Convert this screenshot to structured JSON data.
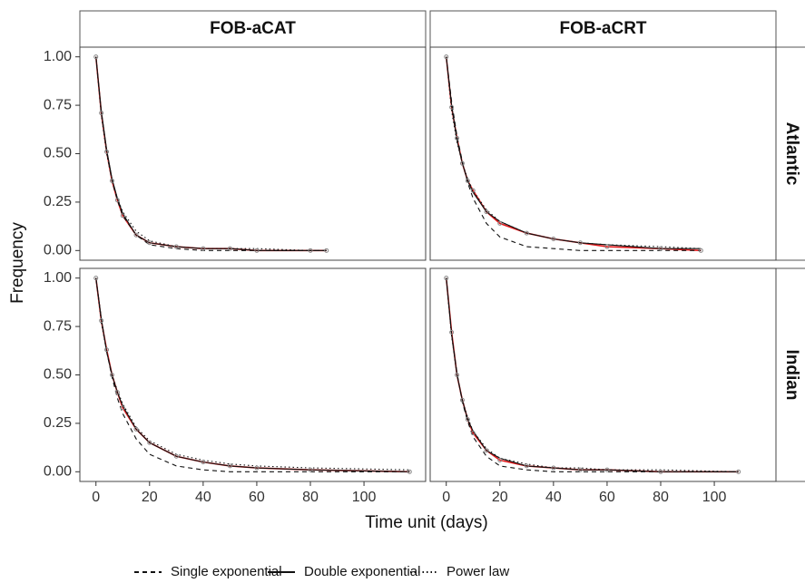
{
  "chart_data": {
    "type": "line",
    "xlabel": "Time unit (days)",
    "ylabel": "Frequency",
    "xlim": [
      -6,
      123
    ],
    "xticks": [
      0,
      20,
      40,
      60,
      80,
      100
    ],
    "ylim": [
      -0.05,
      1.05
    ],
    "yticks": [
      {
        "value": 0,
        "label": "0.00"
      },
      0.25,
      {
        "value": 0.5,
        "label": "0.50"
      },
      0.75,
      {
        "value": 1,
        "label": "1.00"
      }
    ],
    "columns": [
      "FOB-aCAT",
      "FOB-aCRT"
    ],
    "rows": [
      "Atlantic",
      "Indian"
    ],
    "observed_color": "#e31a1c",
    "point_color": "#888888",
    "legend": [
      {
        "name": "Single exponential",
        "style": "dashed"
      },
      {
        "name": "Double exponential",
        "style": "solid"
      },
      {
        "name": "Power law",
        "style": "dotted"
      }
    ],
    "panels": [
      {
        "x": [
          0,
          2,
          4,
          6,
          8,
          10,
          15,
          20,
          30,
          40,
          50,
          60,
          80,
          86
        ],
        "observed": [
          1.0,
          0.71,
          0.51,
          0.36,
          0.26,
          0.18,
          0.08,
          0.04,
          0.02,
          0.01,
          0.01,
          0.0,
          0.0,
          0.0
        ],
        "series": [
          {
            "style": "dashed",
            "values": [
              1.0,
              0.71,
              0.51,
              0.36,
              0.26,
              0.18,
              0.08,
              0.03,
              0.01,
              0.0,
              0.0,
              0.0,
              0.0,
              0.0
            ]
          },
          {
            "style": "solid",
            "values": [
              1.0,
              0.72,
              0.52,
              0.37,
              0.27,
              0.19,
              0.08,
              0.04,
              0.02,
              0.01,
              0.01,
              0.0,
              0.0,
              0.0
            ]
          },
          {
            "style": "dotted",
            "values": [
              1.0,
              0.7,
              0.5,
              0.36,
              0.27,
              0.2,
              0.1,
              0.05,
              0.02,
              0.01,
              0.01,
              0.01,
              0.0,
              0.0
            ]
          }
        ]
      },
      {
        "x": [
          0,
          2,
          4,
          6,
          8,
          10,
          15,
          20,
          30,
          40,
          50,
          60,
          80,
          95
        ],
        "observed": [
          1.0,
          0.74,
          0.58,
          0.45,
          0.36,
          0.31,
          0.2,
          0.14,
          0.09,
          0.06,
          0.04,
          0.02,
          0.01,
          0.0
        ],
        "series": [
          {
            "style": "dashed",
            "values": [
              1.0,
              0.77,
              0.59,
              0.46,
              0.35,
              0.27,
              0.14,
              0.07,
              0.02,
              0.01,
              0.0,
              0.0,
              0.0,
              0.0
            ]
          },
          {
            "style": "solid",
            "values": [
              1.0,
              0.75,
              0.57,
              0.45,
              0.36,
              0.3,
              0.2,
              0.15,
              0.09,
              0.06,
              0.04,
              0.03,
              0.01,
              0.01
            ]
          },
          {
            "style": "dotted",
            "values": [
              1.0,
              0.72,
              0.56,
              0.45,
              0.37,
              0.31,
              0.21,
              0.15,
              0.09,
              0.06,
              0.04,
              0.03,
              0.02,
              0.01
            ]
          }
        ]
      },
      {
        "x": [
          0,
          2,
          4,
          6,
          8,
          10,
          15,
          20,
          30,
          40,
          50,
          60,
          80,
          117
        ],
        "observed": [
          1.0,
          0.78,
          0.63,
          0.5,
          0.41,
          0.33,
          0.22,
          0.15,
          0.08,
          0.05,
          0.03,
          0.02,
          0.01,
          0.0
        ],
        "series": [
          {
            "style": "dashed",
            "values": [
              1.0,
              0.79,
              0.62,
              0.49,
              0.38,
              0.3,
              0.17,
              0.09,
              0.03,
              0.01,
              0.0,
              0.0,
              0.0,
              0.0
            ]
          },
          {
            "style": "solid",
            "values": [
              1.0,
              0.79,
              0.62,
              0.5,
              0.41,
              0.34,
              0.22,
              0.15,
              0.08,
              0.05,
              0.03,
              0.02,
              0.01,
              0.0
            ]
          },
          {
            "style": "dotted",
            "values": [
              1.0,
              0.77,
              0.62,
              0.5,
              0.42,
              0.35,
              0.23,
              0.16,
              0.09,
              0.06,
              0.04,
              0.03,
              0.02,
              0.01
            ]
          }
        ]
      },
      {
        "x": [
          0,
          2,
          4,
          6,
          8,
          10,
          15,
          20,
          30,
          40,
          50,
          60,
          80,
          109
        ],
        "observed": [
          1.0,
          0.72,
          0.5,
          0.37,
          0.27,
          0.2,
          0.11,
          0.06,
          0.03,
          0.02,
          0.01,
          0.01,
          0.0,
          0.0
        ],
        "series": [
          {
            "style": "dashed",
            "values": [
              1.0,
              0.71,
              0.51,
              0.36,
              0.26,
              0.18,
              0.08,
              0.03,
              0.01,
              0.0,
              0.0,
              0.0,
              0.0,
              0.0
            ]
          },
          {
            "style": "solid",
            "values": [
              1.0,
              0.71,
              0.5,
              0.37,
              0.27,
              0.21,
              0.11,
              0.07,
              0.03,
              0.02,
              0.01,
              0.01,
              0.0,
              0.0
            ]
          },
          {
            "style": "dotted",
            "values": [
              1.0,
              0.7,
              0.5,
              0.37,
              0.28,
              0.21,
              0.12,
              0.07,
              0.04,
              0.02,
              0.02,
              0.01,
              0.01,
              0.0
            ]
          }
        ]
      }
    ]
  }
}
